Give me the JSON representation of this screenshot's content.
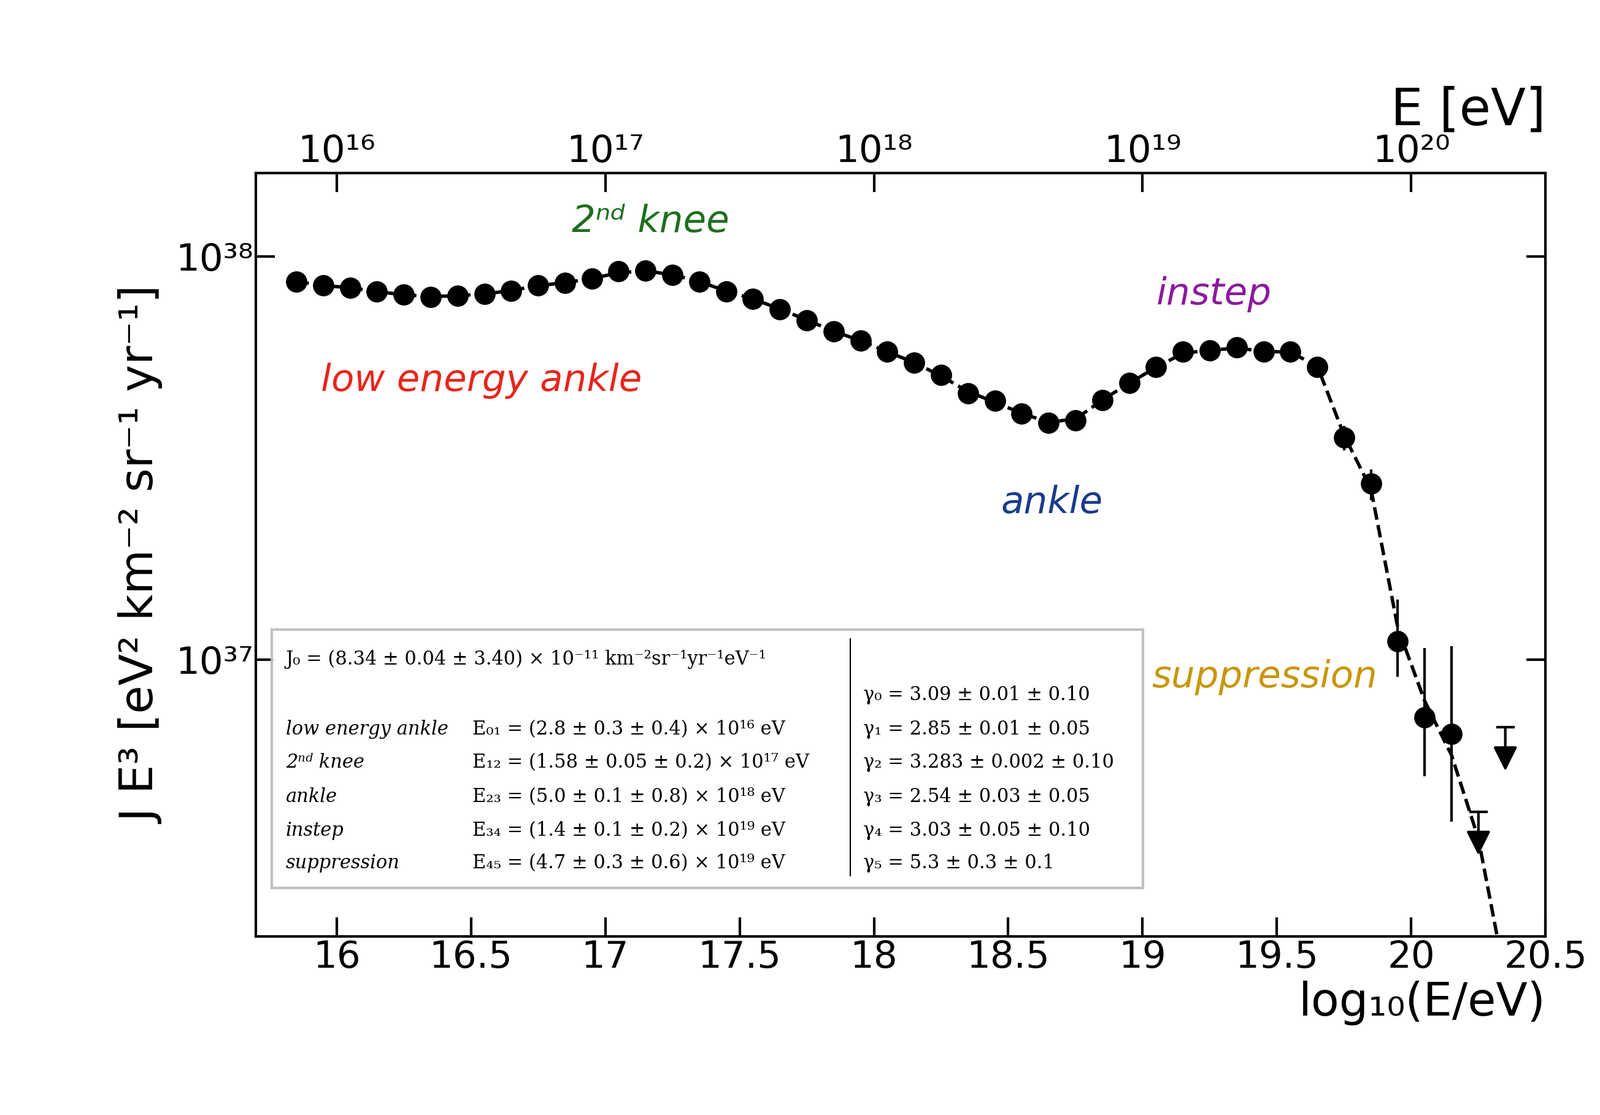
{
  "chart_data": {
    "type": "scatter",
    "x_label": "log₁₀(E/eV)",
    "y_label": "J E³ [eV² km⁻² sr⁻¹ yr⁻¹]",
    "x2_label": "E [eV]",
    "log": "y",
    "xlim": [
      15.7,
      20.5
    ],
    "xticks": [
      16,
      16.5,
      17,
      17.5,
      18,
      18.5,
      19,
      19.5,
      20,
      20.5
    ],
    "x2ticks": [
      {
        "value": 16,
        "label": "10¹⁶"
      },
      {
        "value": 17,
        "label": "10¹⁷"
      },
      {
        "value": 18,
        "label": "10¹⁸"
      },
      {
        "value": 19,
        "label": "10¹⁹"
      },
      {
        "value": 20,
        "label": "10²⁰"
      }
    ],
    "ylim": [
      2.06e+36,
      1.61e+38
    ],
    "yticks": [
      {
        "value": 1e+37,
        "label": "10³⁷"
      },
      {
        "value": 1e+38,
        "label": "10³⁸"
      }
    ],
    "series": [
      {
        "type": "scatter",
        "color": "#000000",
        "marker": "o",
        "x": [
          15.85,
          15.95,
          16.05,
          16.15,
          16.25,
          16.35,
          16.45,
          16.55,
          16.65,
          16.75,
          16.85,
          16.95,
          17.05,
          17.15,
          17.25,
          17.35,
          17.45,
          17.55,
          17.65,
          17.75,
          17.85,
          17.95,
          18.05,
          18.15,
          18.25,
          18.35,
          18.45,
          18.55,
          18.65,
          18.75,
          18.85,
          18.95,
          19.05,
          19.15,
          19.25,
          19.35,
          19.45,
          19.55,
          19.65,
          19.75,
          19.85,
          19.95,
          20.05,
          20.15
        ],
        "values": [
          8.66e+37,
          8.46e+37,
          8.36e+37,
          8.17e+37,
          8.03e+37,
          7.93e+37,
          7.98e+37,
          8.07e+37,
          8.22e+37,
          8.46e+37,
          8.6e+37,
          8.81e+37,
          9.17e+37,
          9.22e+37,
          9e+37,
          8.66e+37,
          8.17e+37,
          7.84e+37,
          7.4e+37,
          6.95e+37,
          6.52e+37,
          6.18e+37,
          5.8e+37,
          5.45e+37,
          5.08e+37,
          4.58e+37,
          4.38e+37,
          4.08e+37,
          3.87e+37,
          3.92e+37,
          4.4e+37,
          4.85e+37,
          5.32e+37,
          5.8e+37,
          5.84e+37,
          5.94e+37,
          5.8e+37,
          5.8e+37,
          5.32e+37,
          3.55e+37,
          2.73e+37,
          1.11e+37,
          7.2e+36,
          6.56e+36
        ],
        "yerr_low": [
          5e+35,
          5e+35,
          5e+35,
          5e+35,
          5e+35,
          5e+35,
          5e+35,
          5e+35,
          5e+35,
          5e+35,
          5e+35,
          5e+35,
          5e+35,
          5e+35,
          5e+35,
          5e+35,
          5e+35,
          5e+35,
          5e+35,
          5e+35,
          5e+35,
          5e+35,
          5e+35,
          5e+35,
          5e+35,
          5e+35,
          5e+35,
          5e+35,
          5e+35,
          5e+35,
          5e+35,
          5e+35,
          5e+35,
          5e+35,
          5e+35,
          5e+35,
          5e+35,
          5e+35,
          5e+35,
          2.5e+36,
          2.4e+36,
          2.04e+36,
          2.06e+36,
          2.59e+36
        ],
        "yerr_high": [
          5e+35,
          5e+35,
          5e+35,
          5e+35,
          5e+35,
          5e+35,
          5e+35,
          5e+35,
          5e+35,
          5e+35,
          5e+35,
          5e+35,
          5e+35,
          5e+35,
          5e+35,
          5e+35,
          5e+35,
          5e+35,
          5e+35,
          5e+35,
          5e+35,
          5e+35,
          5e+35,
          5e+35,
          5e+35,
          5e+35,
          5e+35,
          5e+35,
          5e+35,
          5e+35,
          5e+35,
          5e+35,
          5e+35,
          5e+35,
          5e+35,
          5e+35,
          5e+35,
          5e+35,
          5e+35,
          2.5e+36,
          2.3e+36,
          3e+36,
          3.5e+36,
          4.24e+36
        ]
      },
      {
        "type": "line",
        "color": "#000000",
        "line_style": "dashed",
        "x": [
          15.85,
          15.95,
          16.05,
          16.15,
          16.25,
          16.35,
          16.45,
          16.55,
          16.65,
          16.75,
          16.85,
          16.95,
          17.05,
          17.15,
          17.25,
          17.35,
          17.45,
          17.55,
          17.65,
          17.75,
          17.85,
          17.95,
          18.05,
          18.15,
          18.25,
          18.35,
          18.45,
          18.55,
          18.65,
          18.75,
          18.85,
          18.95,
          19.05,
          19.15,
          19.25,
          19.35,
          19.45,
          19.55,
          19.65,
          19.75,
          19.85,
          19.95,
          20.05,
          20.15,
          20.25,
          20.32
        ],
        "values": [
          8.66e+37,
          8.46e+37,
          8.36e+37,
          8.17e+37,
          8.03e+37,
          7.95e+37,
          7.98e+37,
          8.07e+37,
          8.22e+37,
          8.46e+37,
          8.6e+37,
          8.81e+37,
          9.1e+37,
          9.2e+37,
          9e+37,
          8.66e+37,
          8.2e+37,
          7.84e+37,
          7.4e+37,
          6.95e+37,
          6.52e+37,
          6.18e+37,
          5.8e+37,
          5.45e+37,
          5.05e+37,
          4.62e+37,
          4.35e+37,
          4.08e+37,
          3.88e+37,
          3.95e+37,
          4.4e+37,
          4.85e+37,
          5.3e+37,
          5.75e+37,
          5.85e+37,
          5.92e+37,
          5.82e+37,
          5.78e+37,
          5.35e+37,
          3.6e+37,
          2.65e+37,
          1.2e+37,
          7.9e+36,
          5.8e+36,
          3.6e+36,
          2.06e+36
        ]
      },
      {
        "type": "upper_limit",
        "color": "#000000",
        "marker": "arrow",
        "x": [
          20.25,
          20.35
        ],
        "values": [
          4.2e+36,
          6.8e+36
        ]
      }
    ],
    "annotations": [
      {
        "text": "2ⁿᵈ knee",
        "color": "#1e6e1e"
      },
      {
        "text": "low energy ankle",
        "color": "#e8251b"
      },
      {
        "text": "instep",
        "color": "#8b1a9e"
      },
      {
        "text": "ankle",
        "color": "#1a3a8c"
      },
      {
        "text": "suppression",
        "color": "#c8960a"
      }
    ],
    "fit_table": {
      "J0": "J₀ = (8.34 ± 0.04 ± 3.40) × 10⁻¹¹ km⁻²sr⁻¹yr⁻¹eV⁻¹",
      "gamma0": "γ₀ = 3.09 ± 0.01 ± 0.10",
      "rows": [
        {
          "name": "low energy ankle",
          "break": "E₀₁ = (2.8 ± 0.3 ± 0.4) × 10¹⁶ eV",
          "gamma": "γ₁ = 2.85 ± 0.01 ± 0.05"
        },
        {
          "name": "2ⁿᵈ knee",
          "break": "E₁₂ = (1.58 ± 0.05 ± 0.2) × 10¹⁷ eV",
          "gamma": "γ₂ = 3.283 ± 0.002 ± 0.10"
        },
        {
          "name": "ankle",
          "break": "E₂₃ = (5.0 ± 0.1 ± 0.8) × 10¹⁸ eV",
          "gamma": "γ₃ = 2.54 ± 0.03 ± 0.05"
        },
        {
          "name": "instep",
          "break": "E₃₄ = (1.4 ± 0.1 ± 0.2) × 10¹⁹ eV",
          "gamma": "γ₄ = 3.03 ± 0.05 ± 0.10"
        },
        {
          "name": "suppression",
          "break": "E₄₅ = (4.7 ± 0.3 ± 0.6) × 10¹⁹ eV",
          "gamma": "γ₅ = 5.3 ± 0.3 ± 0.1"
        }
      ]
    }
  }
}
